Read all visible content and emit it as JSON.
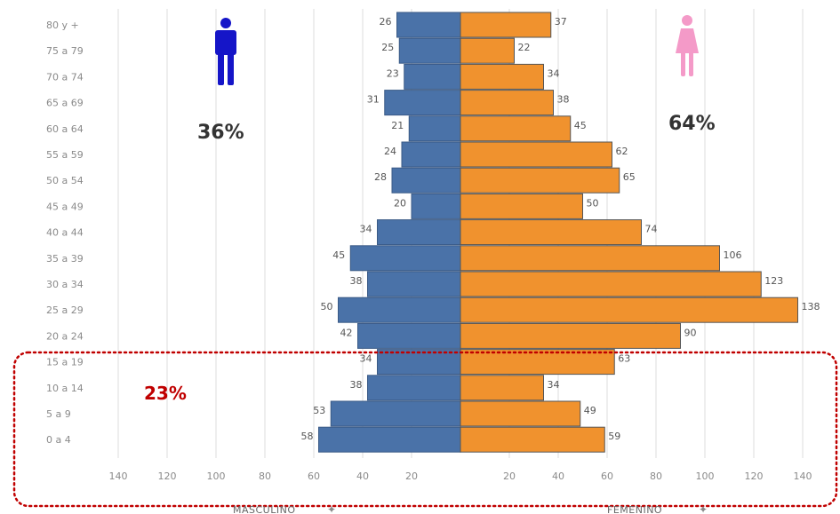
{
  "chart_data": {
    "type": "bar",
    "orientation": "horizontal-population-pyramid",
    "categories": [
      "80 y +",
      "75 a 79",
      "70 a 74",
      "65 a 69",
      "60 a 64",
      "55 a 59",
      "50 a 54",
      "45 a 49",
      "40 a 44",
      "35 a 39",
      "30 a 34",
      "25 a 29",
      "20 a 24",
      "15 a 19",
      "10 a 14",
      "5 a 9",
      "0 a 4"
    ],
    "series": [
      {
        "name": "MASCULINO",
        "side": "left",
        "color": "#4a72a8",
        "values": [
          26,
          25,
          23,
          31,
          21,
          24,
          28,
          20,
          34,
          45,
          38,
          50,
          42,
          34,
          38,
          53,
          58
        ]
      },
      {
        "name": "FEMENINO",
        "side": "right",
        "color": "#f0922e",
        "values": [
          37,
          22,
          34,
          38,
          45,
          62,
          65,
          50,
          74,
          106,
          123,
          138,
          90,
          63,
          34,
          49,
          59
        ]
      }
    ],
    "x_ticks_left": [
      "140",
      "120",
      "100",
      "80",
      "60",
      "40",
      "20"
    ],
    "x_ticks_right": [
      "20",
      "40",
      "60",
      "80",
      "100",
      "120",
      "140"
    ],
    "xlim": [
      0,
      140
    ],
    "axis_titles": {
      "left": "MASCULINO",
      "right": "FEMENINO"
    },
    "annotations": {
      "male_pct": "36%",
      "female_pct": "64%",
      "highlight_pct": "23%"
    },
    "highlight_group": [
      "15 a 19",
      "10 a 14",
      "5 a 9",
      "0 a 4"
    ],
    "grid": true
  },
  "colors": {
    "male": "#4a72a8",
    "female": "#f0922e",
    "male_icon": "#1515c8",
    "female_icon": "#f49ac8",
    "highlight_border": "#c00000"
  },
  "icons": {
    "male": "male-person-icon",
    "female": "female-person-icon",
    "sort": "pin-icon"
  }
}
